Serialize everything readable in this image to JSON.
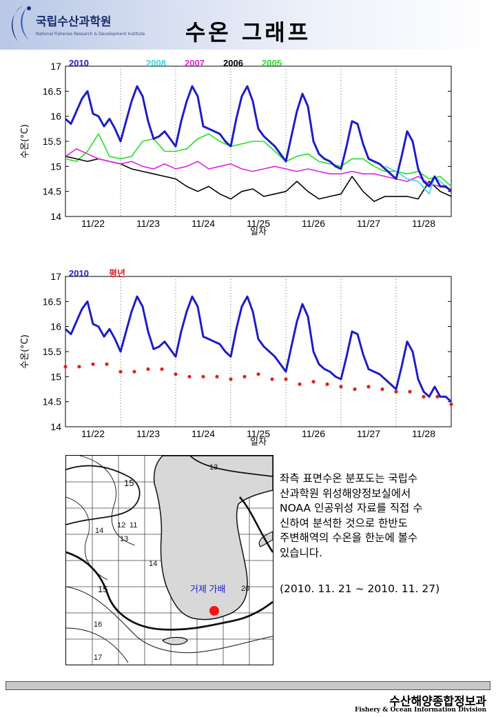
{
  "header": {
    "org_name": "국립수산과학원",
    "org_sub": "National Fisheries Research & Development Institute",
    "title": "수온 그래프"
  },
  "chart_data": [
    {
      "type": "line",
      "xlabel": "일자",
      "ylabel": "수온(°C)",
      "ylim": [
        14,
        17
      ],
      "yticks": [
        14,
        14.5,
        15,
        15.5,
        16,
        16.5,
        17
      ],
      "xticks": [
        "11/22",
        "11/23",
        "11/24",
        "11/25",
        "11/26",
        "11/27",
        "11/28"
      ],
      "xlim_days": [
        0,
        7
      ],
      "grid": "vertical dotted at day boundaries",
      "legend_placement": "top-left",
      "series": [
        {
          "name": "2010",
          "color": "#1c1cc8",
          "x": [
            0,
            0.1,
            0.2,
            0.3,
            0.4,
            0.5,
            0.6,
            0.7,
            0.8,
            0.9,
            1.0,
            1.1,
            1.2,
            1.3,
            1.4,
            1.5,
            1.6,
            1.7,
            1.8,
            1.9,
            2.0,
            2.1,
            2.2,
            2.3,
            2.4,
            2.5,
            2.6,
            2.7,
            2.8,
            2.9,
            3.0,
            3.1,
            3.2,
            3.3,
            3.4,
            3.5,
            3.6,
            3.7,
            3.8,
            3.9,
            4.0,
            4.1,
            4.2,
            4.3,
            4.4,
            4.5,
            4.6,
            4.7,
            4.8,
            4.9,
            5.0,
            5.1,
            5.2,
            5.3,
            5.4,
            5.5,
            5.6,
            5.7,
            5.8,
            5.9,
            6.0,
            6.1,
            6.2,
            6.3,
            6.4,
            6.5,
            6.6,
            6.7,
            6.8,
            6.9,
            7.0
          ],
          "y": [
            15.95,
            15.85,
            16.1,
            16.35,
            16.5,
            16.05,
            16.0,
            15.8,
            15.95,
            15.75,
            15.5,
            15.9,
            16.3,
            16.6,
            16.4,
            15.9,
            15.55,
            15.6,
            15.7,
            15.55,
            15.4,
            15.9,
            16.3,
            16.6,
            16.4,
            15.8,
            15.75,
            15.7,
            15.65,
            15.5,
            15.4,
            15.95,
            16.4,
            16.6,
            16.3,
            15.75,
            15.6,
            15.5,
            15.4,
            15.25,
            15.1,
            15.6,
            16.1,
            16.45,
            16.2,
            15.5,
            15.25,
            15.15,
            15.1,
            15.0,
            14.95,
            15.4,
            15.9,
            15.85,
            15.45,
            15.15,
            15.1,
            15.05,
            14.95,
            14.85,
            14.75,
            15.2,
            15.7,
            15.5,
            14.95,
            14.7,
            14.6,
            14.8,
            14.6,
            14.6,
            14.5
          ]
        },
        {
          "name": "2008",
          "color": "#30d8e0",
          "x": [
            5.8,
            6.0,
            6.2,
            6.4,
            6.6,
            6.7,
            6.8,
            6.9,
            7.0
          ],
          "y": [
            15.0,
            14.9,
            14.75,
            14.7,
            14.45,
            14.8,
            14.7,
            14.6,
            14.5
          ]
        },
        {
          "name": "2007",
          "color": "#e020e0",
          "x": [
            0,
            0.2,
            0.4,
            0.6,
            0.8,
            1.0,
            1.2,
            1.4,
            1.6,
            1.8,
            2.0,
            2.2,
            2.4,
            2.6,
            2.8,
            3.0,
            3.2,
            3.4,
            3.6,
            3.8,
            4.0,
            4.2,
            4.4,
            4.6,
            4.8,
            5.0,
            5.2,
            5.4,
            5.6,
            5.8,
            6.0,
            6.2,
            6.4,
            6.6,
            6.8,
            7.0
          ],
          "y": [
            15.2,
            15.35,
            15.25,
            15.15,
            15.1,
            15.05,
            15.1,
            15.0,
            14.95,
            15.05,
            14.95,
            15.0,
            15.1,
            14.95,
            15.0,
            15.05,
            14.95,
            14.9,
            14.95,
            15.0,
            14.95,
            14.9,
            14.95,
            14.9,
            14.85,
            14.85,
            14.9,
            14.85,
            14.85,
            14.8,
            14.75,
            14.7,
            14.8,
            14.65,
            14.6,
            14.55
          ]
        },
        {
          "name": "2006",
          "color": "#000000",
          "x": [
            0,
            0.2,
            0.4,
            0.6,
            0.8,
            1.0,
            1.2,
            1.4,
            1.6,
            1.8,
            2.0,
            2.2,
            2.4,
            2.6,
            2.8,
            3.0,
            3.2,
            3.4,
            3.6,
            3.8,
            4.0,
            4.2,
            4.4,
            4.6,
            4.8,
            5.0,
            5.2,
            5.4,
            5.6,
            5.8,
            6.0,
            6.2,
            6.4,
            6.6,
            6.8,
            7.0
          ],
          "y": [
            15.2,
            15.15,
            15.1,
            15.15,
            15.1,
            15.05,
            14.95,
            14.9,
            14.85,
            14.8,
            14.75,
            14.6,
            14.5,
            14.6,
            14.45,
            14.35,
            14.5,
            14.55,
            14.4,
            14.45,
            14.5,
            14.7,
            14.5,
            14.35,
            14.4,
            14.45,
            14.8,
            14.5,
            14.3,
            14.4,
            14.4,
            14.4,
            14.35,
            14.7,
            14.5,
            14.4
          ]
        },
        {
          "name": "2005",
          "color": "#20e020",
          "x": [
            0,
            0.2,
            0.4,
            0.6,
            0.8,
            1.0,
            1.2,
            1.4,
            1.6,
            1.8,
            2.0,
            2.2,
            2.4,
            2.6,
            2.8,
            3.0,
            3.2,
            3.4,
            3.6,
            3.8,
            4.0,
            4.2,
            4.4,
            4.6,
            4.8,
            5.0,
            5.2,
            5.4,
            5.6,
            5.8,
            6.0,
            6.2,
            6.4,
            6.6,
            6.8,
            7.0
          ],
          "y": [
            15.15,
            15.1,
            15.3,
            15.65,
            15.2,
            15.15,
            15.2,
            15.5,
            15.55,
            15.3,
            15.3,
            15.35,
            15.55,
            15.65,
            15.5,
            15.4,
            15.45,
            15.5,
            15.5,
            15.3,
            15.1,
            15.2,
            15.25,
            15.1,
            15.05,
            15.0,
            15.15,
            15.15,
            15.0,
            14.9,
            14.9,
            14.85,
            14.9,
            14.75,
            14.8,
            14.6
          ]
        }
      ]
    },
    {
      "type": "line",
      "xlabel": "일자",
      "ylabel": "수온(°C)",
      "ylim": [
        14,
        17
      ],
      "yticks": [
        14,
        14.5,
        15,
        15.5,
        16,
        16.5,
        17
      ],
      "xticks": [
        "11/22",
        "11/23",
        "11/24",
        "11/25",
        "11/26",
        "11/27",
        "11/28"
      ],
      "xlim_days": [
        0,
        7
      ],
      "grid": "vertical dotted at day boundaries",
      "legend_placement": "top-left",
      "series": [
        {
          "name": "2010",
          "color": "#1c1cc8",
          "style": "line",
          "x": [
            0,
            0.1,
            0.2,
            0.3,
            0.4,
            0.5,
            0.6,
            0.7,
            0.8,
            0.9,
            1.0,
            1.1,
            1.2,
            1.3,
            1.4,
            1.5,
            1.6,
            1.7,
            1.8,
            1.9,
            2.0,
            2.1,
            2.2,
            2.3,
            2.4,
            2.5,
            2.6,
            2.7,
            2.8,
            2.9,
            3.0,
            3.1,
            3.2,
            3.3,
            3.4,
            3.5,
            3.6,
            3.7,
            3.8,
            3.9,
            4.0,
            4.1,
            4.2,
            4.3,
            4.4,
            4.5,
            4.6,
            4.7,
            4.8,
            4.9,
            5.0,
            5.1,
            5.2,
            5.3,
            5.4,
            5.5,
            5.6,
            5.7,
            5.8,
            5.9,
            6.0,
            6.1,
            6.2,
            6.3,
            6.4,
            6.5,
            6.6,
            6.7,
            6.8,
            6.9,
            7.0
          ],
          "y": [
            15.95,
            15.85,
            16.1,
            16.35,
            16.5,
            16.05,
            16.0,
            15.8,
            15.95,
            15.75,
            15.5,
            15.9,
            16.3,
            16.6,
            16.4,
            15.9,
            15.55,
            15.6,
            15.7,
            15.55,
            15.4,
            15.9,
            16.3,
            16.6,
            16.4,
            15.8,
            15.75,
            15.7,
            15.65,
            15.5,
            15.4,
            15.95,
            16.4,
            16.6,
            16.3,
            15.75,
            15.6,
            15.5,
            15.4,
            15.25,
            15.1,
            15.6,
            16.1,
            16.45,
            16.2,
            15.5,
            15.25,
            15.15,
            15.1,
            15.0,
            14.95,
            15.4,
            15.9,
            15.85,
            15.45,
            15.15,
            15.1,
            15.05,
            14.95,
            14.85,
            14.75,
            15.2,
            15.7,
            15.5,
            14.95,
            14.7,
            14.6,
            14.8,
            14.6,
            14.6,
            14.5
          ]
        },
        {
          "name": "평년",
          "color": "#e02020",
          "style": "dots",
          "x": [
            0,
            0.25,
            0.5,
            0.75,
            1.0,
            1.25,
            1.5,
            1.75,
            2.0,
            2.25,
            2.5,
            2.75,
            3.0,
            3.25,
            3.5,
            3.75,
            4.0,
            4.25,
            4.5,
            4.75,
            5.0,
            5.25,
            5.5,
            5.75,
            6.0,
            6.25,
            6.5,
            6.75,
            7.0
          ],
          "y": [
            15.2,
            15.2,
            15.25,
            15.25,
            15.1,
            15.1,
            15.15,
            15.15,
            15.05,
            15.0,
            15.0,
            15.0,
            14.95,
            15.0,
            15.05,
            14.95,
            14.95,
            14.85,
            14.9,
            14.85,
            14.8,
            14.75,
            14.8,
            14.75,
            14.7,
            14.7,
            14.6,
            14.6,
            14.45
          ]
        }
      ]
    }
  ],
  "map": {
    "label": "거제 가배",
    "contours": [
      "13",
      "15",
      "12",
      "11",
      "14",
      "13",
      "14",
      "20",
      "15",
      "16",
      "17"
    ]
  },
  "description": "좌측 표면수온 분포도는 국립수\n산과학원 위성해양정보실에서\nNOAA 인공위성 자료를 직접 수\n신하여 분석한 것으로  한반도\n주변해역의 수온을 한눈에 볼수\n있습니다.",
  "date_range": "(2010. 11. 21 ~ 2010. 11. 27)",
  "footer": {
    "kr": "수산해양종합정보과",
    "en": "Fishery & Ocean Information Division"
  }
}
